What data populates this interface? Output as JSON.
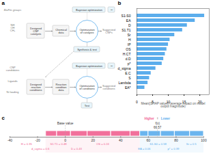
{
  "chart_data": [
    {
      "type": "diagram",
      "title": "a",
      "colors": [
        "#5badec",
        "#e8f5fb"
      ],
      "annotations": [
        "BioFits groups",
        "NH\nOH\nCH₃",
        "Designed\nCNP\ncatalysts",
        "Chemical\ndata",
        "Bayesian optimization",
        "~",
        "Optimization\nof catalysis",
        "Suggested\nCNPs",
        "Synthesis & test",
        "CNP\ncandidates",
        "Ligands",
        "Ni loading",
        "Designed\nreaction\nconditions",
        "Reaction\ncondition\ndata",
        "Bayesian optimization",
        "~",
        "Optimization\nof conditions",
        "Suggested\nconditions",
        "Test"
      ]
    },
    {
      "type": "bar",
      "title": "b",
      "orientation": "horizontal",
      "categories": [
        "S1-S0",
        "EA",
        "D",
        "S1.T1",
        "Sr",
        "H",
        "IP",
        "OS",
        "H.CT",
        "d.D",
        "p*",
        "d_sigma",
        "E.C",
        "S",
        "Lambda",
        "EA*"
      ],
      "values": [
        21.5,
        18.5,
        16.0,
        14.5,
        12.0,
        10.5,
        10.0,
        9.5,
        9.0,
        8.5,
        8.0,
        6.0,
        4.5,
        4.0,
        3.5,
        2.5
      ],
      "color": "#5badec",
      "xlabel": "Mean(|SHAP value|) (average impact on model\noutput magnitude)",
      "xlim": [
        0,
        23
      ],
      "xticks": [
        0,
        5,
        10,
        15,
        20
      ],
      "grid": false
    },
    {
      "type": "force",
      "title": "c",
      "xlim": [
        -40,
        100
      ],
      "xticks": [
        -40,
        -20,
        0,
        20,
        40,
        60,
        80,
        100
      ],
      "series": [
        {
          "name": "Higher",
          "color": "#f06090",
          "values": [
            -14,
            -6,
            4,
            16,
            33,
            47,
            54
          ],
          "labels": [
            "H = 0.35",
            "d_sigma = 0.6",
            "S1.T1 = 0.48",
            "D = 0.43",
            "OS = 0.24"
          ],
          "label_x": [
            -28,
            -18,
            -5,
            8,
            27
          ]
        },
        {
          "name": "Lower",
          "color": "#5badec",
          "values": [
            54,
            60,
            69,
            79,
            90,
            100
          ],
          "labels": [
            "EA = 0.06",
            "S1-S0 = 0.58",
            "p* = 0.39",
            "Sr = 0.5"
          ],
          "label_x": [
            57,
            67,
            78,
            91
          ]
        }
      ],
      "base_value": {
        "label": "Base value",
        "x": 0
      },
      "fx": {
        "label": "f(x)",
        "value_label": "66.57",
        "x": 66.57
      },
      "legend_separator": "↑"
    }
  ]
}
